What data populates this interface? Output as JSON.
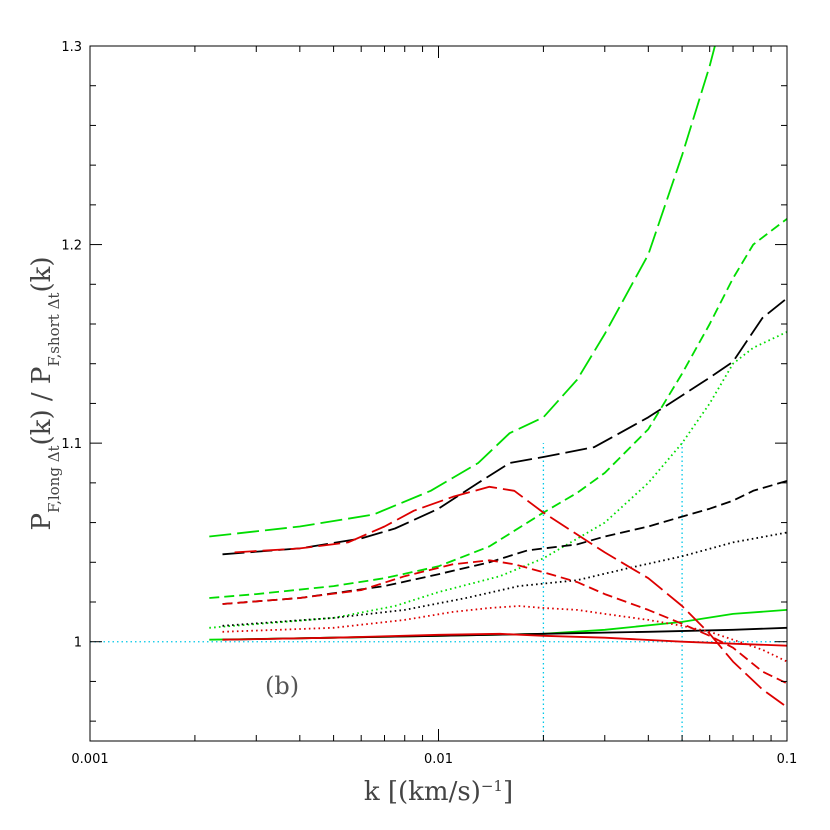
{
  "chart_data": {
    "type": "line",
    "xscale": "log",
    "xlim": [
      0.001,
      0.1
    ],
    "ylim": [
      0.95,
      1.3
    ],
    "xticks": [
      {
        "value": 0.001,
        "label": "0.001"
      },
      {
        "value": 0.01,
        "label": "0.01"
      },
      {
        "value": 0.1,
        "label": "0.1"
      }
    ],
    "yticks": [
      {
        "value": 1.0,
        "label": "1"
      },
      {
        "value": 1.1,
        "label": "1.1"
      },
      {
        "value": 1.2,
        "label": "1.2"
      },
      {
        "value": 1.3,
        "label": "1.3"
      }
    ],
    "xlabel": "k  [(km/s)",
    "xlabel_sup": "−1",
    "xlabel_end": "]",
    "ylabel_parts": {
      "p1": "P",
      "s1": "F,long Δt",
      "m1": "(k)  /  P",
      "s2": "F,short Δt",
      "m2": "(k)"
    },
    "annotation": "(b)",
    "grid": false,
    "legend": "none",
    "reference_lines": {
      "horizontal": 1.0,
      "vertical": [
        0.02,
        0.05
      ],
      "vertical_top": 1.1,
      "color": "#00c8e8"
    },
    "series": [
      {
        "color": "#00dd00",
        "dash": "long",
        "x": [
          0.0022,
          0.004,
          0.0065,
          0.0095,
          0.013,
          0.016,
          0.02,
          0.025,
          0.03,
          0.04,
          0.05,
          0.06,
          0.07
        ],
        "y": [
          1.053,
          1.058,
          1.064,
          1.076,
          1.09,
          1.105,
          1.113,
          1.132,
          1.155,
          1.195,
          1.245,
          1.29,
          1.335
        ]
      },
      {
        "color": "#00dd00",
        "dash": "short",
        "x": [
          0.0022,
          0.003,
          0.005,
          0.007,
          0.01,
          0.014,
          0.02,
          0.025,
          0.03,
          0.04,
          0.05,
          0.06,
          0.07,
          0.08,
          0.1
        ],
        "y": [
          1.022,
          1.024,
          1.028,
          1.032,
          1.038,
          1.048,
          1.065,
          1.075,
          1.085,
          1.107,
          1.135,
          1.16,
          1.183,
          1.2,
          1.213
        ]
      },
      {
        "color": "#00dd00",
        "dash": "dot",
        "x": [
          0.0022,
          0.005,
          0.0075,
          0.01,
          0.015,
          0.02,
          0.03,
          0.04,
          0.05,
          0.06,
          0.07,
          0.08,
          0.1
        ],
        "y": [
          1.007,
          1.012,
          1.018,
          1.025,
          1.033,
          1.042,
          1.06,
          1.08,
          1.1,
          1.12,
          1.14,
          1.148,
          1.156
        ]
      },
      {
        "color": "#00dd00",
        "dash": "solid",
        "x": [
          0.0022,
          0.005,
          0.01,
          0.02,
          0.03,
          0.05,
          0.07,
          0.1
        ],
        "y": [
          1.001,
          1.002,
          1.003,
          1.004,
          1.006,
          1.01,
          1.014,
          1.016
        ]
      },
      {
        "color": "#000000",
        "dash": "long",
        "x": [
          0.0024,
          0.004,
          0.006,
          0.0075,
          0.01,
          0.013,
          0.016,
          0.02,
          0.028,
          0.04,
          0.05,
          0.06,
          0.07,
          0.085,
          0.1
        ],
        "y": [
          1.044,
          1.047,
          1.052,
          1.057,
          1.067,
          1.08,
          1.09,
          1.093,
          1.098,
          1.113,
          1.124,
          1.133,
          1.141,
          1.163,
          1.173
        ]
      },
      {
        "color": "#000000",
        "dash": "short",
        "x": [
          0.0024,
          0.004,
          0.007,
          0.01,
          0.014,
          0.018,
          0.025,
          0.03,
          0.04,
          0.05,
          0.06,
          0.07,
          0.08,
          0.1
        ],
        "y": [
          1.019,
          1.022,
          1.028,
          1.034,
          1.04,
          1.046,
          1.049,
          1.053,
          1.058,
          1.063,
          1.067,
          1.071,
          1.076,
          1.081
        ]
      },
      {
        "color": "#000000",
        "dash": "dot",
        "x": [
          0.0024,
          0.005,
          0.008,
          0.012,
          0.017,
          0.025,
          0.035,
          0.05,
          0.07,
          0.1
        ],
        "y": [
          1.008,
          1.012,
          1.016,
          1.022,
          1.028,
          1.031,
          1.037,
          1.043,
          1.05,
          1.055
        ]
      },
      {
        "color": "#000000",
        "dash": "solid",
        "x": [
          0.0024,
          0.005,
          0.01,
          0.02,
          0.04,
          0.07,
          0.1
        ],
        "y": [
          1.001,
          1.002,
          1.003,
          1.004,
          1.005,
          1.006,
          1.007
        ]
      },
      {
        "color": "#dd0000",
        "dash": "long",
        "x": [
          0.0026,
          0.004,
          0.0055,
          0.007,
          0.0085,
          0.011,
          0.014,
          0.0165,
          0.02,
          0.025,
          0.03,
          0.04,
          0.05,
          0.06,
          0.07,
          0.085,
          0.1
        ],
        "y": [
          1.045,
          1.047,
          1.05,
          1.058,
          1.066,
          1.073,
          1.078,
          1.076,
          1.065,
          1.054,
          1.045,
          1.032,
          1.018,
          1.004,
          0.99,
          0.976,
          0.967
        ]
      },
      {
        "color": "#dd0000",
        "dash": "short",
        "x": [
          0.0024,
          0.004,
          0.006,
          0.008,
          0.011,
          0.014,
          0.0165,
          0.02,
          0.025,
          0.03,
          0.04,
          0.05,
          0.06,
          0.07,
          0.085,
          0.1
        ],
        "y": [
          1.019,
          1.022,
          1.026,
          1.033,
          1.039,
          1.041,
          1.039,
          1.035,
          1.03,
          1.024,
          1.016,
          1.009,
          1.003,
          0.997,
          0.985,
          0.979
        ]
      },
      {
        "color": "#dd0000",
        "dash": "dot",
        "x": [
          0.0024,
          0.005,
          0.008,
          0.011,
          0.014,
          0.017,
          0.02,
          0.025,
          0.03,
          0.04,
          0.05,
          0.06,
          0.07,
          0.085,
          0.1
        ],
        "y": [
          1.005,
          1.007,
          1.011,
          1.015,
          1.017,
          1.018,
          1.017,
          1.016,
          1.014,
          1.011,
          1.008,
          1.005,
          1.001,
          0.996,
          0.99
        ]
      },
      {
        "color": "#dd0000",
        "dash": "solid",
        "x": [
          0.0024,
          0.005,
          0.01,
          0.015,
          0.02,
          0.03,
          0.05,
          0.07,
          0.1
        ],
        "y": [
          1.001,
          1.002,
          1.0035,
          1.004,
          1.003,
          1.002,
          1.0,
          0.999,
          0.998
        ]
      }
    ]
  }
}
